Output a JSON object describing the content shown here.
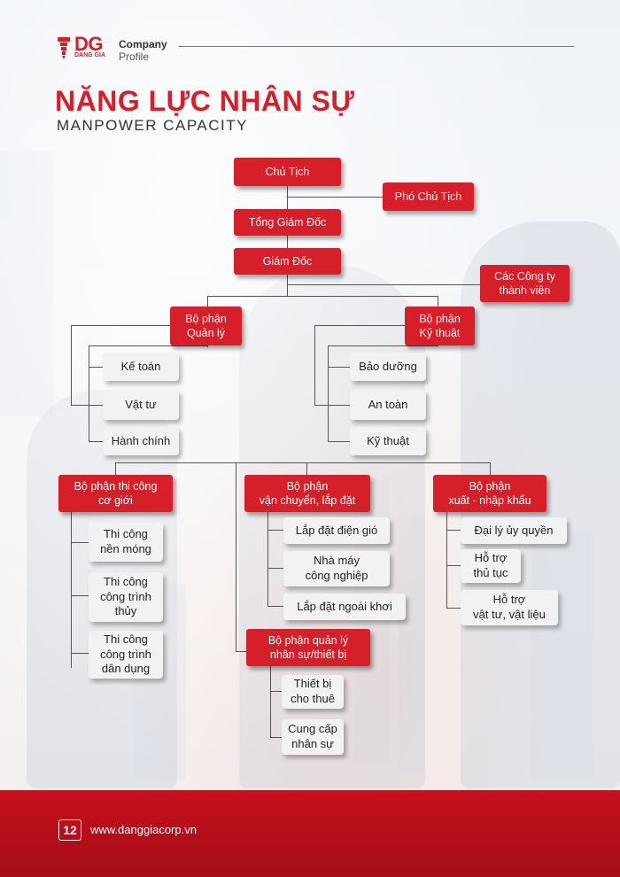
{
  "header": {
    "logo_text": "DG",
    "logo_subtext": "DANG GIA",
    "company": "Company",
    "profile": "Profile"
  },
  "title": "NĂNG LỰC NHÂN SỰ",
  "subtitle": "MANPOWER CAPACITY",
  "org": {
    "chu_tich": "Chủ Tịch",
    "pho_chu_tich": "Phó Chủ Tịch",
    "tong_giam_doc": "Tổng Giám Đốc",
    "giam_doc": "Giám Đốc",
    "cac_cong_ty": "Các Công ty\nthành viên",
    "bp_quan_ly": {
      "label": "Bộ phận\nQuản lý",
      "children": [
        "Kế toán",
        "Vật tư",
        "Hành chính"
      ]
    },
    "bp_ky_thuat": {
      "label": "Bộ phận\nKỹ thuật",
      "children": [
        "Bảo dưỡng",
        "An toàn",
        "Kỹ thuật"
      ]
    },
    "bp_thi_cong": {
      "label": "Bộ phận thi công\ncơ giới",
      "children": [
        "Thi công\nnền móng",
        "Thi công\ncông trình\nthủy",
        "Thi công\ncông trình\ndân dụng"
      ]
    },
    "bp_van_chuyen": {
      "label": "Bộ phận\nvận chuyển, lắp đặt",
      "children": [
        "Lắp đặt điện gió",
        "Nhà máy\ncông nghiệp",
        "Lắp đặt ngoài khơi"
      ]
    },
    "bp_xuat_nhap": {
      "label": "Bộ phận\nxuất - nhập khẩu",
      "children": [
        "Đại lý ủy quyền",
        "Hỗ trợ\nthủ tục",
        "Hỗ trợ\nvật tư, vật liệu"
      ]
    },
    "bp_nhan_su": {
      "label": "Bộ phận quản lý\nnhân sự/thiết bị",
      "children": [
        "Thiết bị\ncho thuê",
        "Cung cấp\nnhân sự"
      ]
    }
  },
  "footer": {
    "page_number": "12",
    "website": "www.danggiacorp.vn"
  },
  "colors": {
    "brand_red": "#d71f2a",
    "footer_red": "#b80f1a",
    "box_white": "#f2f2f2"
  }
}
